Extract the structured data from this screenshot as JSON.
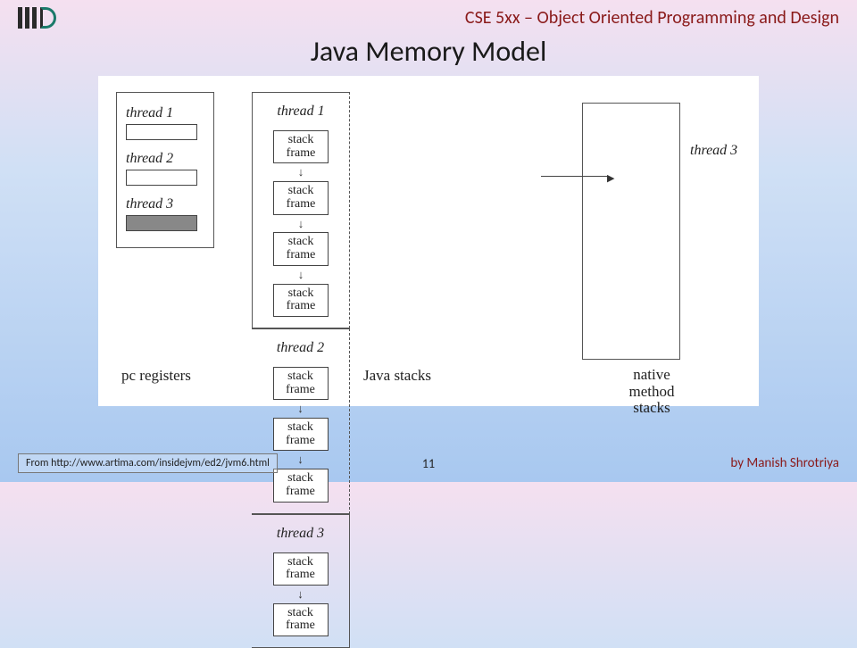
{
  "header": {
    "course": "CSE 5xx – Object Oriented Programming and Design"
  },
  "title": "Java Memory Model",
  "diagram": {
    "pc_registers": {
      "items": [
        {
          "label": "thread 1",
          "filled": false
        },
        {
          "label": "thread 2",
          "filled": false
        },
        {
          "label": "thread 3",
          "filled": true
        }
      ],
      "caption": "pc registers"
    },
    "java_stacks": {
      "columns": [
        {
          "head": "thread 1",
          "frames": 4
        },
        {
          "head": "thread 2",
          "frames": 3
        },
        {
          "head": "thread 3",
          "frames": 2
        }
      ],
      "frame_label": "stack\nframe",
      "caption": "Java stacks"
    },
    "native": {
      "label": "thread 3",
      "caption": "native\nmethod\nstacks"
    },
    "colors": {
      "border": "#555555",
      "box_border": "#444444",
      "pc_fill": "#888888",
      "bg": "#ffffff"
    }
  },
  "footer": {
    "source": "From http://www.artima.com/insidejvm/ed2/jvm6.html",
    "page": "11",
    "author": "by Manish Shrotriya"
  }
}
